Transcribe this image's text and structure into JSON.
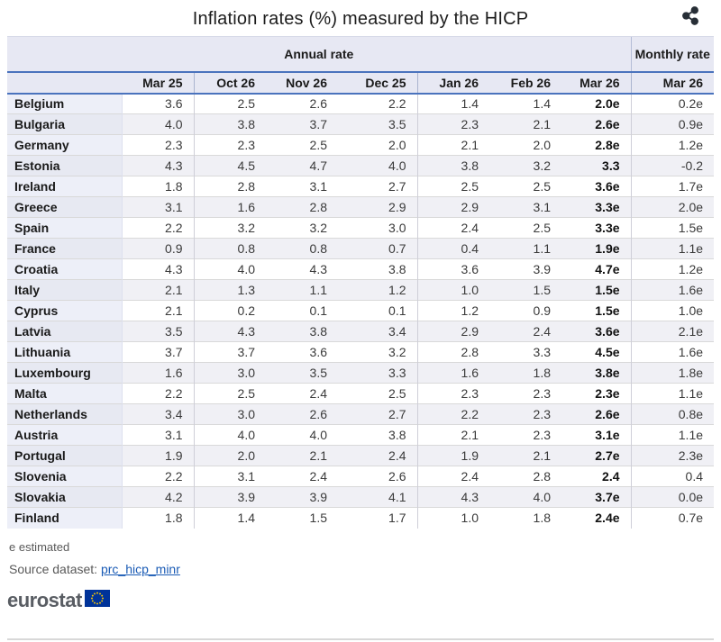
{
  "title": "Inflation rates (%) measured by the HICP",
  "share_icon": "share",
  "table": {
    "group_headers": {
      "annual": "Annual rate",
      "monthly": "Monthly rate"
    },
    "columns": [
      "Mar 25",
      "Oct 26",
      "Nov 26",
      "Dec 25",
      "Jan 26",
      "Feb 26",
      "Mar 26",
      "Mar 26"
    ],
    "rows": [
      {
        "country": "Belgium",
        "values": [
          "3.6",
          "2.5",
          "2.6",
          "2.2",
          "1.4",
          "1.4",
          "2.0e",
          "0.2e"
        ]
      },
      {
        "country": "Bulgaria",
        "values": [
          "4.0",
          "3.8",
          "3.7",
          "3.5",
          "2.3",
          "2.1",
          "2.6e",
          "0.9e"
        ]
      },
      {
        "country": "Germany",
        "values": [
          "2.3",
          "2.3",
          "2.5",
          "2.0",
          "2.1",
          "2.0",
          "2.8e",
          "1.2e"
        ]
      },
      {
        "country": "Estonia",
        "values": [
          "4.3",
          "4.5",
          "4.7",
          "4.0",
          "3.8",
          "3.2",
          "3.3",
          "-0.2"
        ]
      },
      {
        "country": "Ireland",
        "values": [
          "1.8",
          "2.8",
          "3.1",
          "2.7",
          "2.5",
          "2.5",
          "3.6e",
          "1.7e"
        ]
      },
      {
        "country": "Greece",
        "values": [
          "3.1",
          "1.6",
          "2.8",
          "2.9",
          "2.9",
          "3.1",
          "3.3e",
          "2.0e"
        ]
      },
      {
        "country": "Spain",
        "values": [
          "2.2",
          "3.2",
          "3.2",
          "3.0",
          "2.4",
          "2.5",
          "3.3e",
          "1.5e"
        ]
      },
      {
        "country": "France",
        "values": [
          "0.9",
          "0.8",
          "0.8",
          "0.7",
          "0.4",
          "1.1",
          "1.9e",
          "1.1e"
        ]
      },
      {
        "country": "Croatia",
        "values": [
          "4.3",
          "4.0",
          "4.3",
          "3.8",
          "3.6",
          "3.9",
          "4.7e",
          "1.2e"
        ]
      },
      {
        "country": "Italy",
        "values": [
          "2.1",
          "1.3",
          "1.1",
          "1.2",
          "1.0",
          "1.5",
          "1.5e",
          "1.6e"
        ]
      },
      {
        "country": "Cyprus",
        "values": [
          "2.1",
          "0.2",
          "0.1",
          "0.1",
          "1.2",
          "0.9",
          "1.5e",
          "1.0e"
        ]
      },
      {
        "country": "Latvia",
        "values": [
          "3.5",
          "4.3",
          "3.8",
          "3.4",
          "2.9",
          "2.4",
          "3.6e",
          "2.1e"
        ]
      },
      {
        "country": "Lithuania",
        "values": [
          "3.7",
          "3.7",
          "3.6",
          "3.2",
          "2.8",
          "3.3",
          "4.5e",
          "1.6e"
        ]
      },
      {
        "country": "Luxembourg",
        "values": [
          "1.6",
          "3.0",
          "3.5",
          "3.3",
          "1.6",
          "1.8",
          "3.8e",
          "1.8e"
        ]
      },
      {
        "country": "Malta",
        "values": [
          "2.2",
          "2.5",
          "2.4",
          "2.5",
          "2.3",
          "2.3",
          "2.3e",
          "1.1e"
        ]
      },
      {
        "country": "Netherlands",
        "values": [
          "3.4",
          "3.0",
          "2.6",
          "2.7",
          "2.2",
          "2.3",
          "2.6e",
          "0.8e"
        ]
      },
      {
        "country": "Austria",
        "values": [
          "3.1",
          "4.0",
          "4.0",
          "3.8",
          "2.1",
          "2.3",
          "3.1e",
          "1.1e"
        ]
      },
      {
        "country": "Portugal",
        "values": [
          "1.9",
          "2.0",
          "2.1",
          "2.4",
          "1.9",
          "2.1",
          "2.7e",
          "2.3e"
        ]
      },
      {
        "country": "Slovenia",
        "values": [
          "2.2",
          "3.1",
          "2.4",
          "2.6",
          "2.4",
          "2.8",
          "2.4",
          "0.4"
        ]
      },
      {
        "country": "Slovakia",
        "values": [
          "4.2",
          "3.9",
          "3.9",
          "4.1",
          "4.3",
          "4.0",
          "3.7e",
          "0.0e"
        ]
      },
      {
        "country": "Finland",
        "values": [
          "1.8",
          "1.4",
          "1.5",
          "1.7",
          "1.0",
          "1.8",
          "2.4e",
          "0.7e"
        ]
      }
    ]
  },
  "footer": {
    "note": "e estimated",
    "source_label": "Source dataset:",
    "source_link": "prc_hicp_minr",
    "logo_text": "eurostat"
  },
  "colors": {
    "header_bg": "#e7e8f3",
    "header_line_blue": "#4a73bd",
    "stripe_bg": "#f0f0f5",
    "link_blue": "#1a5bb5",
    "eu_flag_blue": "#003399",
    "eu_star_yellow": "#ffcc00"
  }
}
